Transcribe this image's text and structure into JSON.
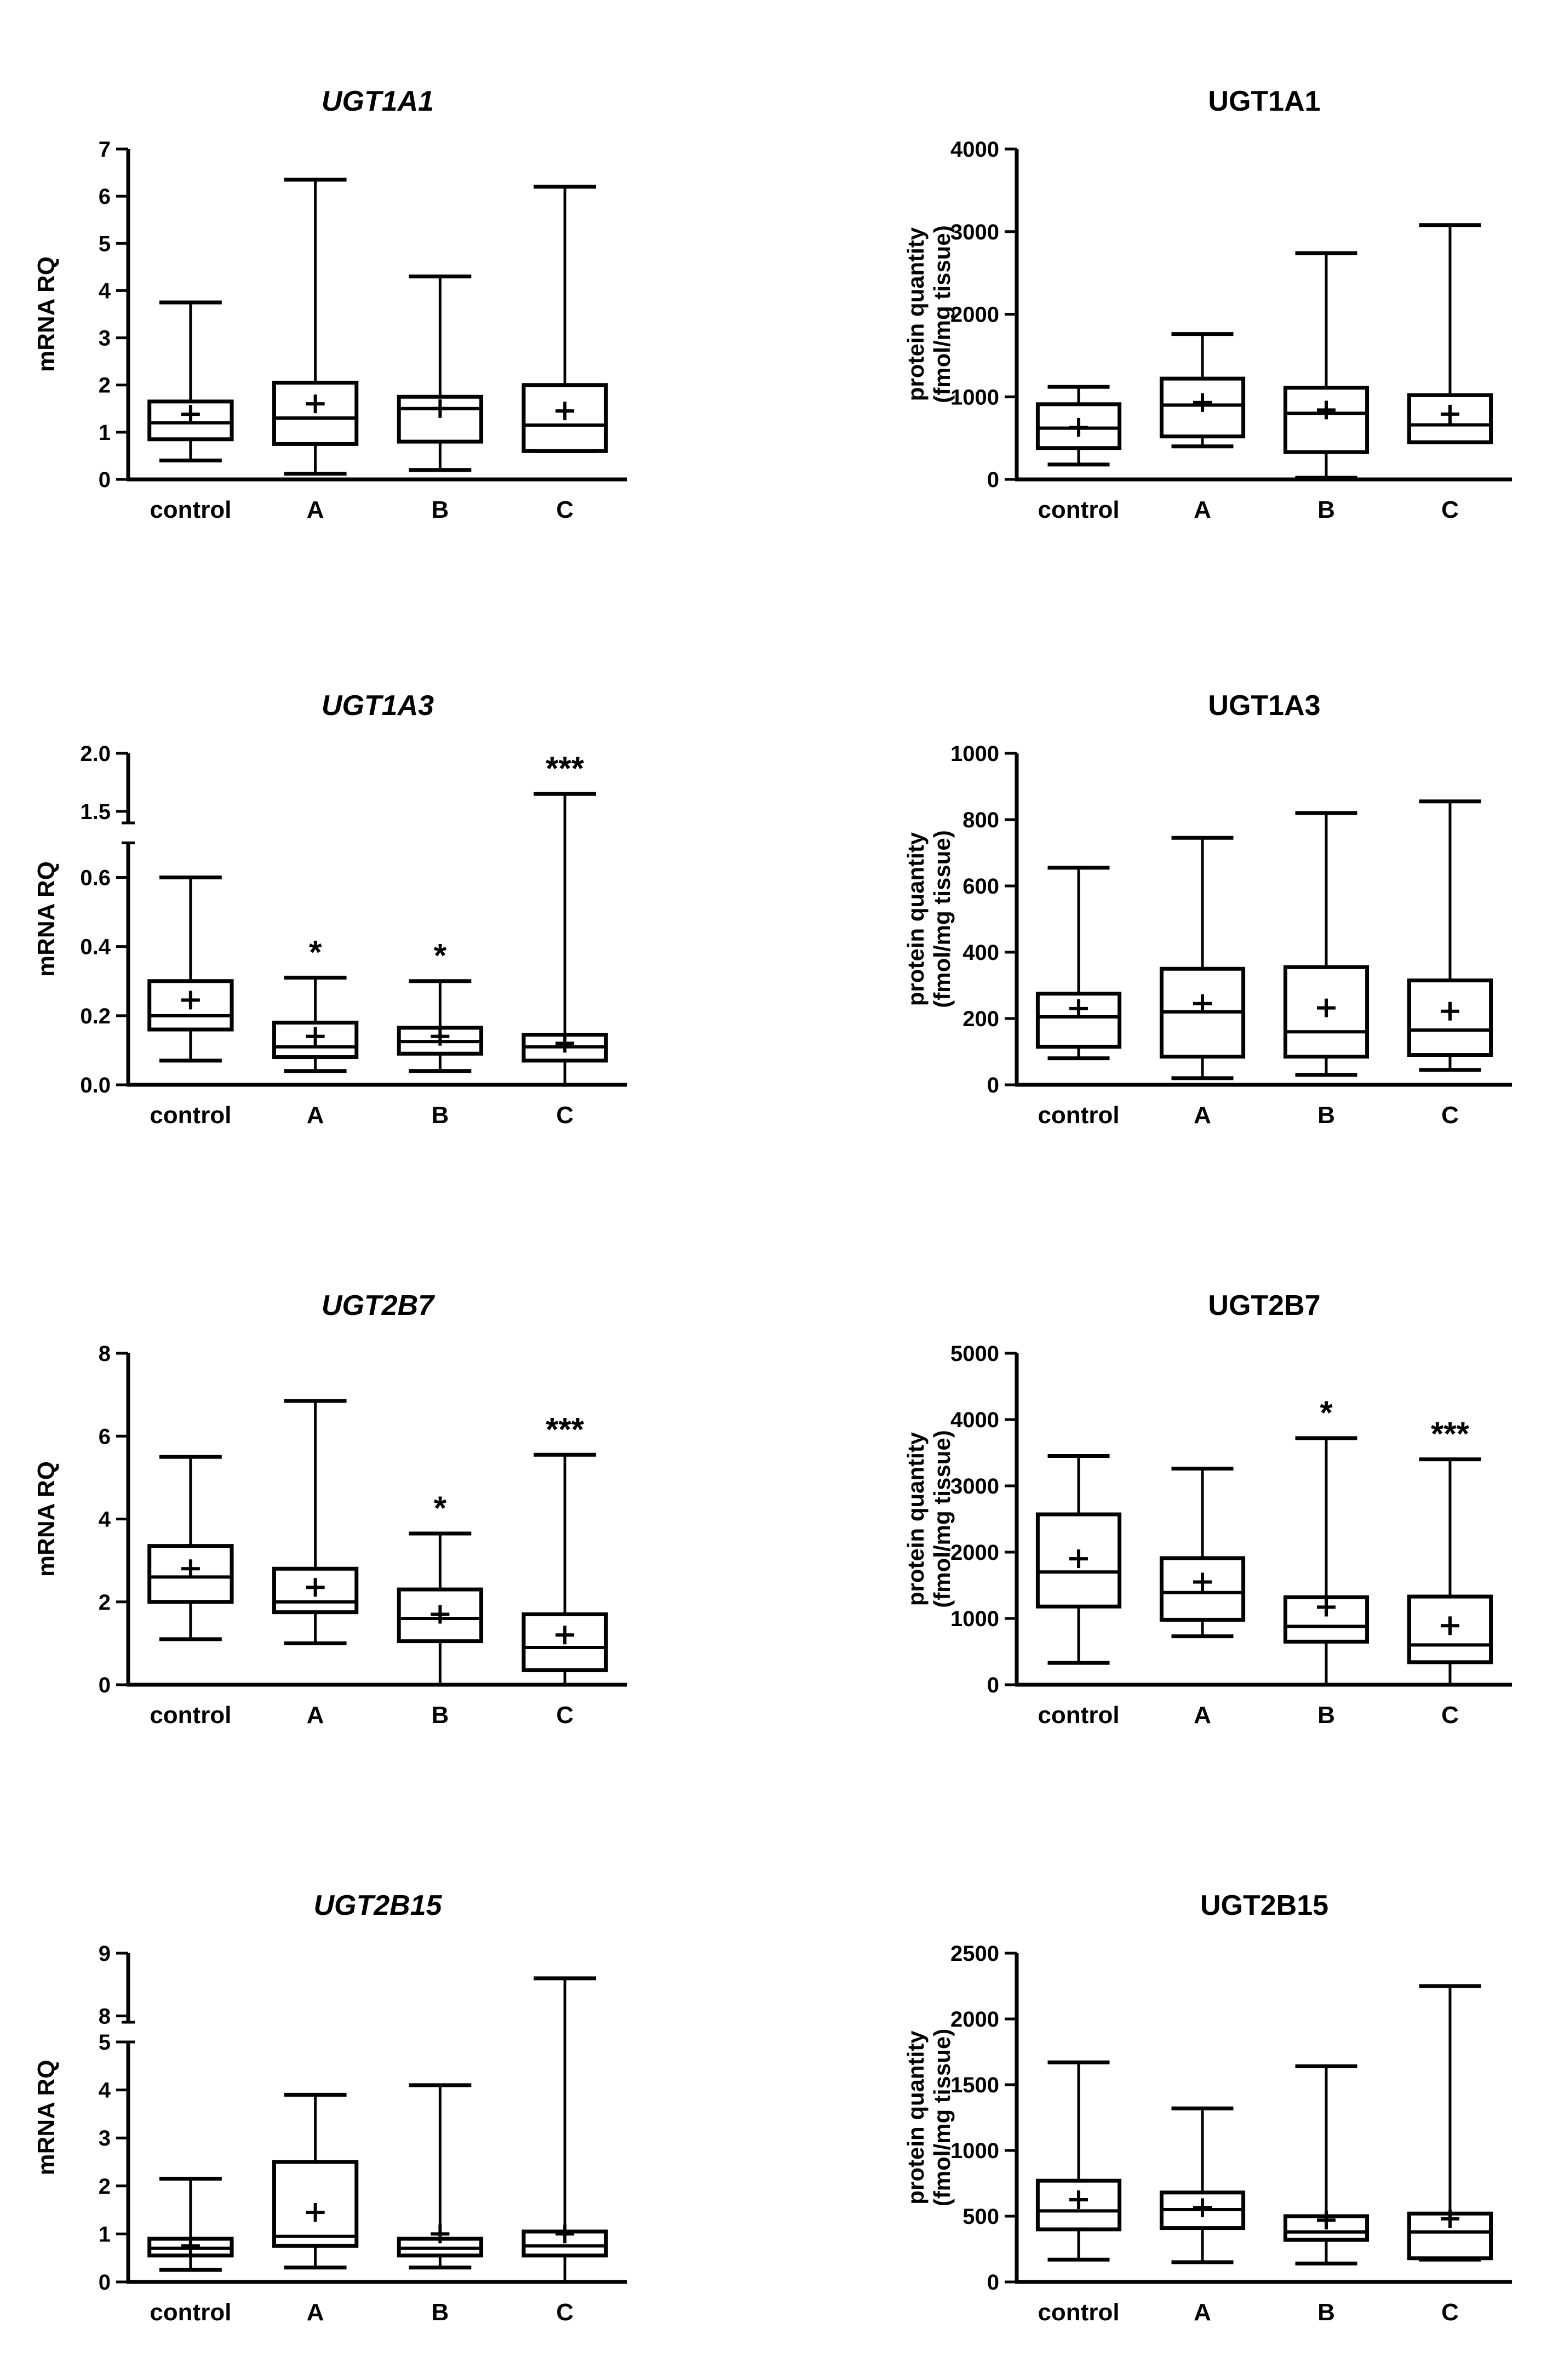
{
  "chart_data": [
    {
      "type": "box",
      "title": "UGT1A1",
      "title_italic": true,
      "ylabel": "mRNA RQ",
      "categories": [
        "control",
        "A",
        "B",
        "C"
      ],
      "ylim": [
        0,
        7
      ],
      "yticks": [
        0,
        1,
        2,
        3,
        4,
        5,
        6,
        7
      ],
      "grid": false,
      "boxes": [
        {
          "min": 0.4,
          "q1": 0.85,
          "median": 1.2,
          "q3": 1.65,
          "max": 3.75,
          "mean": 1.38,
          "sig": ""
        },
        {
          "min": 0.12,
          "q1": 0.75,
          "median": 1.3,
          "q3": 2.05,
          "max": 6.35,
          "mean": 1.6,
          "sig": ""
        },
        {
          "min": 0.2,
          "q1": 0.8,
          "median": 1.5,
          "q3": 1.75,
          "max": 4.3,
          "mean": 1.5,
          "sig": ""
        },
        {
          "min": 0.6,
          "q1": 0.6,
          "median": 1.15,
          "q3": 2.0,
          "max": 6.2,
          "mean": 1.45,
          "sig": ""
        }
      ]
    },
    {
      "type": "box",
      "title": "UGT1A1",
      "title_italic": false,
      "ylabel": "protein quantity",
      "ylabel2": "(fmol/mg tissue)",
      "categories": [
        "control",
        "A",
        "B",
        "C"
      ],
      "ylim": [
        0,
        4000
      ],
      "yticks": [
        0,
        1000,
        2000,
        3000,
        4000
      ],
      "grid": false,
      "boxes": [
        {
          "min": 180,
          "q1": 380,
          "median": 620,
          "q3": 910,
          "max": 1120,
          "mean": 630,
          "sig": ""
        },
        {
          "min": 400,
          "q1": 520,
          "median": 900,
          "q3": 1220,
          "max": 1760,
          "mean": 930,
          "sig": ""
        },
        {
          "min": 20,
          "q1": 330,
          "median": 800,
          "q3": 1110,
          "max": 2740,
          "mean": 840,
          "sig": ""
        },
        {
          "min": 450,
          "q1": 450,
          "median": 660,
          "q3": 1020,
          "max": 3080,
          "mean": 790,
          "sig": ""
        }
      ]
    },
    {
      "type": "box",
      "title": "UGT1A3",
      "title_italic": true,
      "ylabel": "mRNA RQ",
      "categories": [
        "control",
        "A",
        "B",
        "C"
      ],
      "ylim": [
        0,
        2.0
      ],
      "axis_break": {
        "lower_max": 0.7,
        "upper_min": 1.4
      },
      "yticks": [
        0.0,
        0.2,
        0.4,
        0.6,
        1.5,
        2.0
      ],
      "ytick_labels": [
        "0.0",
        "0.2",
        "0.4",
        "0.6",
        "1.5",
        "2.0"
      ],
      "grid": false,
      "boxes": [
        {
          "min": 0.07,
          "q1": 0.16,
          "median": 0.2,
          "q3": 0.3,
          "max": 0.6,
          "mean": 0.245,
          "sig": ""
        },
        {
          "min": 0.04,
          "q1": 0.08,
          "median": 0.11,
          "q3": 0.18,
          "max": 0.31,
          "mean": 0.14,
          "sig": "*"
        },
        {
          "min": 0.04,
          "q1": 0.09,
          "median": 0.125,
          "q3": 0.165,
          "max": 0.3,
          "mean": 0.14,
          "sig": "*"
        },
        {
          "min": 0.0,
          "q1": 0.07,
          "median": 0.11,
          "q3": 0.145,
          "max": 1.65,
          "mean": 0.12,
          "sig": "***"
        }
      ]
    },
    {
      "type": "box",
      "title": "UGT1A3",
      "title_italic": false,
      "ylabel": "protein quantity",
      "ylabel2": "(fmol/mg tissue)",
      "categories": [
        "control",
        "A",
        "B",
        "C"
      ],
      "ylim": [
        0,
        1000
      ],
      "yticks": [
        0,
        200,
        400,
        600,
        800,
        1000
      ],
      "grid": false,
      "boxes": [
        {
          "min": 80,
          "q1": 115,
          "median": 205,
          "q3": 275,
          "max": 655,
          "mean": 230,
          "sig": ""
        },
        {
          "min": 20,
          "q1": 85,
          "median": 220,
          "q3": 350,
          "max": 745,
          "mean": 245,
          "sig": ""
        },
        {
          "min": 30,
          "q1": 85,
          "median": 160,
          "q3": 355,
          "max": 820,
          "mean": 232,
          "sig": ""
        },
        {
          "min": 45,
          "q1": 90,
          "median": 165,
          "q3": 315,
          "max": 855,
          "mean": 222,
          "sig": ""
        }
      ]
    },
    {
      "type": "box",
      "title": "UGT2B7",
      "title_italic": true,
      "ylabel": "mRNA RQ",
      "categories": [
        "control",
        "A",
        "B",
        "C"
      ],
      "ylim": [
        0,
        8
      ],
      "yticks": [
        0,
        2,
        4,
        6,
        8
      ],
      "grid": false,
      "boxes": [
        {
          "min": 1.1,
          "q1": 2.0,
          "median": 2.6,
          "q3": 3.35,
          "max": 5.5,
          "mean": 2.8,
          "sig": ""
        },
        {
          "min": 1.0,
          "q1": 1.75,
          "median": 2.0,
          "q3": 2.8,
          "max": 6.85,
          "mean": 2.35,
          "sig": ""
        },
        {
          "min": 0.0,
          "q1": 1.05,
          "median": 1.6,
          "q3": 2.3,
          "max": 3.65,
          "mean": 1.7,
          "sig": "*"
        },
        {
          "min": 0.0,
          "q1": 0.35,
          "median": 0.9,
          "q3": 1.7,
          "max": 5.55,
          "mean": 1.2,
          "sig": "***"
        }
      ]
    },
    {
      "type": "box",
      "title": "UGT2B7",
      "title_italic": false,
      "ylabel": "protein quantity",
      "ylabel2": "(fmol/mg tissue)",
      "categories": [
        "control",
        "A",
        "B",
        "C"
      ],
      "ylim": [
        0,
        5000
      ],
      "yticks": [
        0,
        1000,
        2000,
        3000,
        4000,
        5000
      ],
      "grid": false,
      "boxes": [
        {
          "min": 330,
          "q1": 1180,
          "median": 1700,
          "q3": 2570,
          "max": 3450,
          "mean": 1900,
          "sig": ""
        },
        {
          "min": 730,
          "q1": 980,
          "median": 1390,
          "q3": 1910,
          "max": 3260,
          "mean": 1550,
          "sig": ""
        },
        {
          "min": 0,
          "q1": 650,
          "median": 880,
          "q3": 1320,
          "max": 3720,
          "mean": 1170,
          "sig": "*"
        },
        {
          "min": 0,
          "q1": 340,
          "median": 600,
          "q3": 1330,
          "max": 3400,
          "mean": 890,
          "sig": "***"
        }
      ]
    },
    {
      "type": "box",
      "title": "UGT2B15",
      "title_italic": true,
      "ylabel": "mRNA RQ",
      "categories": [
        "control",
        "A",
        "B",
        "C"
      ],
      "ylim": [
        0,
        9
      ],
      "axis_break": {
        "lower_max": 5.0,
        "upper_min": 7.9
      },
      "yticks": [
        0,
        1,
        2,
        3,
        4,
        5,
        8,
        9
      ],
      "ytick_labels": [
        "0",
        "1",
        "2",
        "3",
        "4",
        "5",
        "8",
        "9"
      ],
      "grid": false,
      "boxes": [
        {
          "min": 0.25,
          "q1": 0.55,
          "median": 0.7,
          "q3": 0.9,
          "max": 2.15,
          "mean": 0.75,
          "sig": ""
        },
        {
          "min": 0.3,
          "q1": 0.75,
          "median": 0.95,
          "q3": 2.5,
          "max": 3.9,
          "mean": 1.45,
          "sig": ""
        },
        {
          "min": 0.3,
          "q1": 0.55,
          "median": 0.7,
          "q3": 0.9,
          "max": 4.1,
          "mean": 1.0,
          "sig": ""
        },
        {
          "min": 0.0,
          "q1": 0.55,
          "median": 0.75,
          "q3": 1.05,
          "max": 8.6,
          "mean": 1.0,
          "sig": ""
        }
      ]
    },
    {
      "type": "box",
      "title": "UGT2B15",
      "title_italic": false,
      "ylabel": "protein quantity",
      "ylabel2": "(fmol/mg tissue)",
      "categories": [
        "control",
        "A",
        "B",
        "C"
      ],
      "ylim": [
        0,
        2500
      ],
      "yticks": [
        0,
        500,
        1000,
        1500,
        2000,
        2500
      ],
      "grid": false,
      "boxes": [
        {
          "min": 170,
          "q1": 400,
          "median": 540,
          "q3": 770,
          "max": 1670,
          "mean": 625,
          "sig": ""
        },
        {
          "min": 150,
          "q1": 410,
          "median": 550,
          "q3": 680,
          "max": 1320,
          "mean": 565,
          "sig": ""
        },
        {
          "min": 140,
          "q1": 320,
          "median": 380,
          "q3": 500,
          "max": 1640,
          "mean": 470,
          "sig": ""
        },
        {
          "min": 170,
          "q1": 180,
          "median": 380,
          "q3": 520,
          "max": 2250,
          "mean": 480,
          "sig": ""
        }
      ]
    }
  ]
}
